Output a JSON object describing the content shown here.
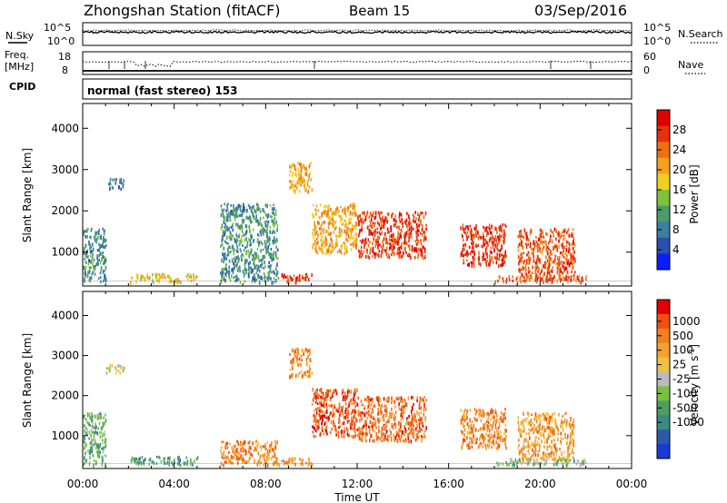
{
  "header": {
    "title": "Zhongshan Station (fitACF)",
    "beam": "Beam 15",
    "date": "03/Sep/2016"
  },
  "noise_panel": {
    "left_label": "N.Sky",
    "right_label": "N.Search",
    "left_ticks": [
      "10^5",
      "10^0"
    ],
    "right_ticks": [
      "10^5",
      "10^0"
    ]
  },
  "freq_panel": {
    "left_label_1": "Freq.",
    "left_label_2": "[MHz]",
    "right_label": "Nave",
    "left_ticks": [
      "18",
      "8"
    ],
    "right_ticks": [
      "60",
      "0"
    ]
  },
  "cpid_panel": {
    "label": "CPID",
    "text": "normal (fast stereo) 153"
  },
  "chart_data": [
    {
      "type": "heatmap",
      "ylabel": "Slant Range [km]",
      "y_ticks": [
        1000,
        2000,
        3000,
        4000
      ],
      "ylim": [
        180,
        4600
      ],
      "x_range_hours": [
        0,
        24
      ],
      "colorbar": {
        "label": "Power [dB]",
        "ticks": [
          "4",
          "8",
          "12",
          "16",
          "20",
          "24",
          "28"
        ],
        "range": [
          0,
          32
        ],
        "colors": [
          "#0a1eff",
          "#2a4fb0",
          "#3a7fa0",
          "#4e9a6a",
          "#7fc23c",
          "#f0d020",
          "#f5a020",
          "#f07010",
          "#e83010",
          "#e00000"
        ]
      },
      "features": [
        {
          "t": [
            0.0,
            1.0
          ],
          "r": [
            300,
            1600
          ],
          "level": 0.3
        },
        {
          "t": [
            1.0,
            1.8
          ],
          "r": [
            2550,
            2800
          ],
          "level": 0.25
        },
        {
          "t": [
            2.0,
            5.0
          ],
          "r": [
            300,
            500
          ],
          "level": 0.55
        },
        {
          "t": [
            6.0,
            8.5
          ],
          "r": [
            300,
            2200
          ],
          "level": 0.3
        },
        {
          "t": [
            8.5,
            10.0
          ],
          "r": [
            300,
            500
          ],
          "level": 0.85
        },
        {
          "t": [
            9.0,
            10.0
          ],
          "r": [
            2500,
            3200
          ],
          "level": 0.65
        },
        {
          "t": [
            10.0,
            12.0
          ],
          "r": [
            1000,
            2200
          ],
          "level": 0.65
        },
        {
          "t": [
            12.0,
            15.0
          ],
          "r": [
            900,
            2000
          ],
          "level": 0.85
        },
        {
          "t": [
            16.5,
            18.5
          ],
          "r": [
            700,
            1700
          ],
          "level": 0.85
        },
        {
          "t": [
            19.0,
            21.5
          ],
          "r": [
            400,
            1600
          ],
          "level": 0.8
        },
        {
          "t": [
            18.0,
            22.0
          ],
          "r": [
            300,
            450
          ],
          "level": 0.8
        }
      ]
    },
    {
      "type": "heatmap",
      "ylabel": "Slant Range [km]",
      "xlabel": "Time UT",
      "x_tick_labels": [
        "00:00",
        "04:00",
        "08:00",
        "12:00",
        "16:00",
        "20:00",
        "00:00"
      ],
      "y_ticks": [
        1000,
        2000,
        3000,
        4000
      ],
      "ylim": [
        180,
        4600
      ],
      "x_range_hours": [
        0,
        24
      ],
      "colorbar": {
        "label": "Velocity [m s",
        "label_exp": "-1",
        "label_end": "]",
        "ticks": [
          "1000",
          "500",
          "100",
          "25",
          "-25",
          "-100",
          "-500",
          "-1000"
        ],
        "colors": [
          "#1a3ad8",
          "#2a5aa8",
          "#3a8a80",
          "#4e9e60",
          "#7cc040",
          "#bbbbbb",
          "#f0c040",
          "#f5a030",
          "#f08020",
          "#f05010",
          "#e00000"
        ]
      },
      "features": [
        {
          "t": [
            0.0,
            1.0
          ],
          "r": [
            300,
            1600
          ],
          "level": 0.35
        },
        {
          "t": [
            1.0,
            1.8
          ],
          "r": [
            2550,
            2800
          ],
          "level": 0.52
        },
        {
          "t": [
            2.0,
            5.0
          ],
          "r": [
            300,
            500
          ],
          "level": 0.3
        },
        {
          "t": [
            6.0,
            8.5
          ],
          "r": [
            300,
            900
          ],
          "level": 0.75
        },
        {
          "t": [
            8.5,
            10.0
          ],
          "r": [
            300,
            500
          ],
          "level": 0.7
        },
        {
          "t": [
            9.0,
            10.0
          ],
          "r": [
            2500,
            3200
          ],
          "level": 0.72
        },
        {
          "t": [
            10.0,
            12.0
          ],
          "r": [
            1000,
            2200
          ],
          "level": 0.85
        },
        {
          "t": [
            12.0,
            15.0
          ],
          "r": [
            900,
            2000
          ],
          "level": 0.8
        },
        {
          "t": [
            16.5,
            18.5
          ],
          "r": [
            700,
            1700
          ],
          "level": 0.75
        },
        {
          "t": [
            19.0,
            21.5
          ],
          "r": [
            400,
            1600
          ],
          "level": 0.7
        },
        {
          "t": [
            18.0,
            22.0
          ],
          "r": [
            300,
            450
          ],
          "level": 0.4
        }
      ]
    }
  ]
}
